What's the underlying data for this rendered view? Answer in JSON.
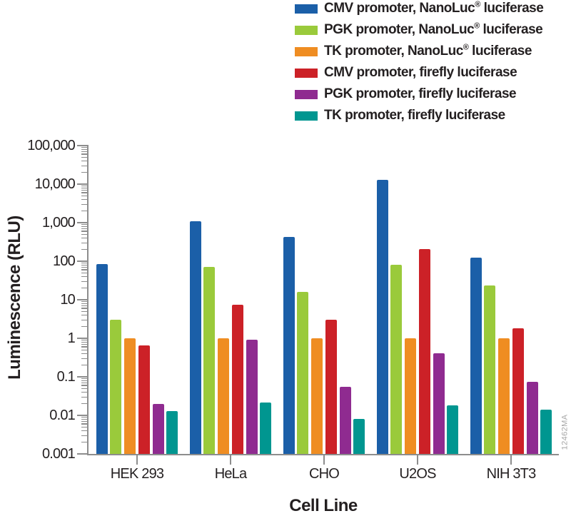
{
  "figure": {
    "watermark": "12462MA"
  },
  "chart_data": {
    "type": "bar",
    "yscale": "log",
    "title": "",
    "xlabel": "Cell Line",
    "ylabel": "Luminescence (RLU)",
    "ylim": [
      0.001,
      100000
    ],
    "grid": false,
    "legend_position": "top-right",
    "y_tick_labels": [
      "100,000",
      "10,000",
      "1,000",
      "100",
      "10",
      "1",
      "0.1",
      "0.01",
      "0.001"
    ],
    "categories": [
      "HEK 293",
      "HeLa",
      "CHO",
      "U2OS",
      "NIH 3T3"
    ],
    "series": [
      {
        "name": "CMV promoter, NanoLuc® luciferase",
        "color": "#1b5fa8",
        "values": [
          85,
          1100,
          420,
          13000,
          125
        ]
      },
      {
        "name": "PGK promoter, NanoLuc® luciferase",
        "color": "#9aca3b",
        "values": [
          3,
          70,
          16,
          80,
          23
        ]
      },
      {
        "name": "TK promoter, NanoLuc® luciferase",
        "color": "#ef8d22",
        "values": [
          1,
          1,
          1,
          1,
          1
        ]
      },
      {
        "name": "CMV promoter, firefly luciferase",
        "color": "#cc2127",
        "values": [
          0.65,
          7.5,
          3,
          210,
          1.8
        ]
      },
      {
        "name": "PGK promoter, firefly luciferase",
        "color": "#8f2b90",
        "values": [
          0.02,
          0.9,
          0.055,
          0.4,
          0.075
        ]
      },
      {
        "name": "TK promoter, firefly luciferase",
        "color": "#009690",
        "values": [
          0.013,
          0.022,
          0.008,
          0.018,
          0.014
        ]
      }
    ]
  }
}
